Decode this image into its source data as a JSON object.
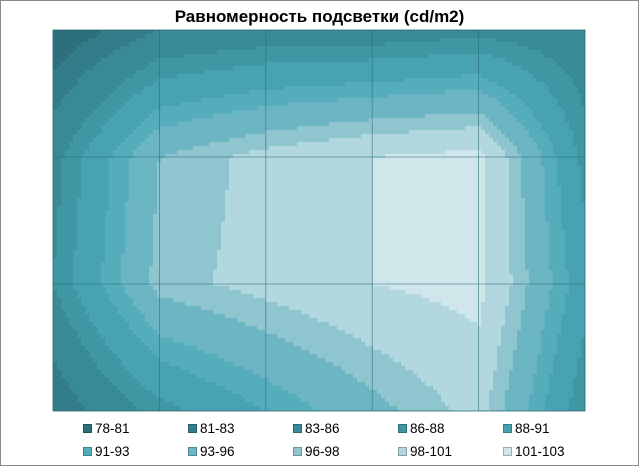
{
  "chart_data": {
    "type": "heatmap",
    "subtype": "surface-contour",
    "title": "Равномерность подсветки (cd/m2)",
    "xlabel": "",
    "ylabel": "",
    "x": [
      1,
      2,
      3,
      4,
      5,
      6
    ],
    "y": [
      1,
      2,
      3,
      4
    ],
    "z": [
      [
        79,
        83,
        84,
        84,
        85,
        84
      ],
      [
        85,
        96,
        99,
        101,
        102,
        87
      ],
      [
        86,
        97,
        99,
        101,
        102,
        89
      ],
      [
        81,
        87,
        91,
        95,
        99,
        86
      ]
    ],
    "bands": [
      {
        "label": "78-81",
        "min": 78,
        "max": 81,
        "color": "#2d6f7b"
      },
      {
        "label": "81-83",
        "min": 81,
        "max": 83,
        "color": "#337c89"
      },
      {
        "label": "83-86",
        "min": 83,
        "max": 86,
        "color": "#398a97"
      },
      {
        "label": "86-88",
        "min": 86,
        "max": 88,
        "color": "#3f97a4"
      },
      {
        "label": "88-91",
        "min": 88,
        "max": 91,
        "color": "#47a3b1"
      },
      {
        "label": "91-93",
        "min": 91,
        "max": 93,
        "color": "#55acbb"
      },
      {
        "label": "93-96",
        "min": 93,
        "max": 96,
        "color": "#6cb6c3"
      },
      {
        "label": "96-98",
        "min": 96,
        "max": 98,
        "color": "#8ec5cf"
      },
      {
        "label": "98-101",
        "min": 98,
        "max": 101,
        "color": "#b3d7de"
      },
      {
        "label": "101-103",
        "min": 101,
        "max": 103,
        "color": "#cfe6eb"
      }
    ],
    "grid": true,
    "legend_position": "bottom"
  }
}
